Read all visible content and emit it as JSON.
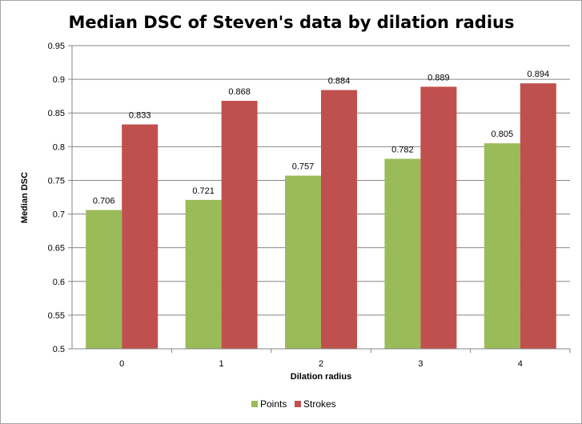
{
  "chart_data": {
    "type": "bar",
    "title": "Median DSC of Steven's data by dilation radius",
    "xlabel": "Dilation radius",
    "ylabel": "Median DSC",
    "categories": [
      "0",
      "1",
      "2",
      "3",
      "4"
    ],
    "series": [
      {
        "name": "Points",
        "color": "#9bbb59",
        "values": [
          0.706,
          0.721,
          0.757,
          0.782,
          0.805
        ]
      },
      {
        "name": "Strokes",
        "color": "#c0504d",
        "values": [
          0.833,
          0.868,
          0.884,
          0.889,
          0.894
        ]
      }
    ],
    "data_labels": [
      [
        "0.706",
        "0.721",
        "0.757",
        "0.782",
        "0.805"
      ],
      [
        "0.833",
        "0.868",
        "0.884",
        "0.889",
        "0.894"
      ]
    ],
    "ylim": [
      0.5,
      0.95
    ],
    "yticks": [
      0.5,
      0.55,
      0.6,
      0.65,
      0.7,
      0.75,
      0.8,
      0.85,
      0.9,
      0.95
    ],
    "ytick_labels": [
      "0.5",
      "0.55",
      "0.6",
      "0.65",
      "0.7",
      "0.75",
      "0.8",
      "0.85",
      "0.9",
      "0.95"
    ],
    "grid": true,
    "legend_position": "bottom"
  }
}
